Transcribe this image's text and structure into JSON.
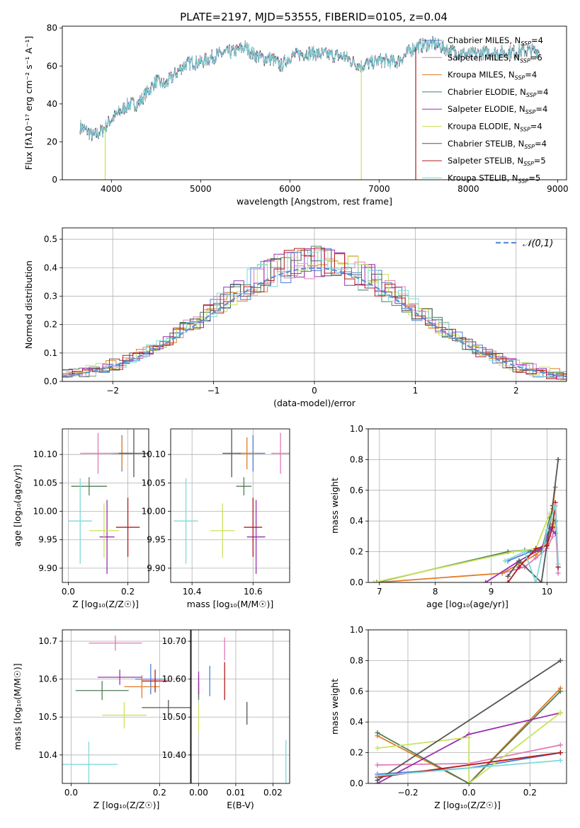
{
  "title": "PLATE=2197, MJD=53555, FIBERID=0105, z=0.04",
  "colors": {
    "Chabrier MILES": "#4a7fd6",
    "Salpeter MILES": "#e07ab8",
    "Kroupa MILES": "#e07c28",
    "Chabrier ELODIE": "#4e7d56",
    "Salpeter ELODIE": "#9a2fb0",
    "Kroupa ELODIE": "#c9e35a",
    "Chabrier STELIB": "#555555",
    "Salpeter STELIB": "#b51a1a",
    "Kroupa STELIB": "#7fd8d8"
  },
  "chart_data": [
    {
      "type": "line",
      "title": "PLATE=2197, MJD=53555, FIBERID=0105, z=0.04",
      "xlabel": "wavelength [Angstrom, rest frame]",
      "ylabel": "Flux [fλ10⁻¹⁷ erg cm⁻² s⁻¹ A⁻¹]",
      "xlim": [
        3450,
        9100
      ],
      "ylim": [
        0,
        81
      ],
      "xticks": [
        4000,
        5000,
        6000,
        7000,
        8000,
        9000
      ],
      "yticks": [
        0,
        20,
        40,
        60,
        80
      ],
      "legend_position": "right",
      "legend": [
        {
          "name": "Chabrier MILES",
          "nssp": "4"
        },
        {
          "name": "Salpeter MILES",
          "nssp": "6"
        },
        {
          "name": "Kroupa MILES",
          "nssp": "4"
        },
        {
          "name": "Chabrier ELODIE",
          "nssp": "4"
        },
        {
          "name": "Salpeter ELODIE",
          "nssp": "4"
        },
        {
          "name": "Kroupa ELODIE",
          "nssp": "4"
        },
        {
          "name": "Chabrier STELIB",
          "nssp": "4"
        },
        {
          "name": "Salpeter STELIB",
          "nssp": "5"
        },
        {
          "name": "Kroupa STELIB",
          "nssp": "5"
        }
      ],
      "nssp_prefix": "N",
      "nssp_sub": "SSP",
      "spectrum_anchors": {
        "x": [
          3650,
          3750,
          3800,
          3900,
          4000,
          4100,
          4200,
          4300,
          4400,
          4500,
          4600,
          4700,
          4800,
          4900,
          5000,
          5100,
          5200,
          5300,
          5400,
          5500,
          5600,
          5700,
          5800,
          5900,
          6000,
          6200,
          6400,
          6600,
          6800,
          7000,
          7200,
          7400,
          7600,
          7800,
          8000,
          8200,
          8400,
          8600,
          8800
        ],
        "y": [
          28,
          25,
          23,
          26,
          32,
          36,
          40,
          40,
          46,
          52,
          50,
          55,
          60,
          62,
          62,
          64,
          66,
          67,
          68,
          70,
          66,
          64,
          64,
          60,
          65,
          67,
          66,
          65,
          60,
          63,
          62,
          70,
          72,
          68,
          66,
          67,
          67,
          68,
          68
        ]
      },
      "dips": [
        {
          "x": 3930,
          "y": 0,
          "series": "Kroupa ELODIE"
        },
        {
          "x": 6800,
          "y": 0,
          "series": "Kroupa ELODIE"
        },
        {
          "x": 7410,
          "y": 0,
          "series": "Salpeter STELIB"
        }
      ]
    },
    {
      "type": "bar",
      "xlabel": "(data-model)/error",
      "ylabel": "Normed distribution",
      "xlim": [
        -2.5,
        2.5
      ],
      "ylim": [
        0,
        0.54
      ],
      "xticks": [
        -2,
        -1,
        0,
        1,
        2
      ],
      "yticks": [
        0.0,
        0.1,
        0.2,
        0.3,
        0.4,
        0.5
      ],
      "grid": true,
      "legend_position": "top-right",
      "legend_label": "𝒩(0,1)",
      "bin_width": 0.1,
      "gaussian": {
        "mean": 0,
        "sigma": 1
      }
    },
    {
      "type": "scatter",
      "xlabel": "Z [log₁₀(Z/Z☉)]",
      "ylabel": "age  [log₁₀(age/yr)]",
      "xlim": [
        -0.02,
        0.27
      ],
      "ylim": [
        9.875,
        10.145
      ],
      "xticks": [
        0.0,
        0.2
      ],
      "yticks": [
        9.9,
        9.95,
        10.0,
        10.05,
        10.1
      ],
      "grid": true,
      "points": [
        {
          "series": "Chabrier MILES",
          "x": 0.18,
          "y": 10.102,
          "dx": 0.035,
          "dy": 0.032
        },
        {
          "series": "Salpeter MILES",
          "x": 0.1,
          "y": 10.102,
          "dx": 0.06,
          "dy": 0.036
        },
        {
          "series": "Kroupa MILES",
          "x": 0.18,
          "y": 10.102,
          "dx": 0.02,
          "dy": 0.028
        },
        {
          "series": "Chabrier ELODIE",
          "x": 0.07,
          "y": 10.044,
          "dx": 0.06,
          "dy": 0.016
        },
        {
          "series": "Salpeter ELODIE",
          "x": 0.13,
          "y": 9.955,
          "dx": 0.025,
          "dy": 0.065
        },
        {
          "series": "Kroupa ELODIE",
          "x": 0.12,
          "y": 9.966,
          "dx": 0.05,
          "dy": 0.048
        },
        {
          "series": "Chabrier STELIB",
          "x": 0.22,
          "y": 10.102,
          "dx": 0.05,
          "dy": 0.042
        },
        {
          "series": "Salpeter STELIB",
          "x": 0.2,
          "y": 9.972,
          "dx": 0.04,
          "dy": 0.052
        },
        {
          "series": "Kroupa STELIB",
          "x": 0.04,
          "y": 9.983,
          "dx": 0.04,
          "dy": 0.075
        }
      ]
    },
    {
      "type": "scatter",
      "xlabel": "mass [log₁₀(M/M☉)]",
      "ylabel": "",
      "xlim": [
        10.33,
        10.72
      ],
      "ylim": [
        9.875,
        10.145
      ],
      "xticks": [
        10.4,
        10.6
      ],
      "yticks": [
        9.9,
        9.95,
        10.0,
        10.05,
        10.1
      ],
      "grid": true,
      "points": [
        {
          "series": "Chabrier MILES",
          "x": 10.6,
          "y": 10.102,
          "dx": 0.04,
          "dy": 0.032
        },
        {
          "series": "Salpeter MILES",
          "x": 10.69,
          "y": 10.102,
          "dx": 0.03,
          "dy": 0.036
        },
        {
          "series": "Kroupa MILES",
          "x": 10.58,
          "y": 10.102,
          "dx": 0.03,
          "dy": 0.028
        },
        {
          "series": "Chabrier ELODIE",
          "x": 10.57,
          "y": 10.044,
          "dx": 0.025,
          "dy": 0.016
        },
        {
          "series": "Salpeter ELODIE",
          "x": 10.61,
          "y": 9.955,
          "dx": 0.03,
          "dy": 0.065
        },
        {
          "series": "Kroupa ELODIE",
          "x": 10.5,
          "y": 9.966,
          "dx": 0.04,
          "dy": 0.048
        },
        {
          "series": "Chabrier STELIB",
          "x": 10.53,
          "y": 10.102,
          "dx": 0.03,
          "dy": 0.042
        },
        {
          "series": "Salpeter STELIB",
          "x": 10.6,
          "y": 9.972,
          "dx": 0.03,
          "dy": 0.052
        },
        {
          "series": "Kroupa STELIB",
          "x": 10.38,
          "y": 9.983,
          "dx": 0.04,
          "dy": 0.075
        }
      ]
    },
    {
      "type": "line",
      "xlabel": "age  [log₁₀(age/yr)]",
      "ylabel": "mass weight",
      "xlim": [
        6.8,
        10.35
      ],
      "ylim": [
        0,
        1.0
      ],
      "xticks": [
        7,
        8,
        9,
        10
      ],
      "yticks": [
        0.0,
        0.2,
        0.4,
        0.6,
        0.8,
        1.0
      ],
      "grid": true,
      "series": [
        {
          "name": "Chabrier MILES",
          "x": [
            9.3,
            9.7,
            9.9,
            10.0,
            10.1,
            10.15,
            10.2
          ],
          "y": [
            0.14,
            0.2,
            0.22,
            0.28,
            0.38,
            0.5,
            0.1
          ]
        },
        {
          "name": "Salpeter MILES",
          "x": [
            9.2,
            9.6,
            9.8,
            10.0,
            10.1,
            10.15,
            10.2
          ],
          "y": [
            0.06,
            0.1,
            0.16,
            0.22,
            0.3,
            0.4,
            0.06
          ]
        },
        {
          "name": "Kroupa MILES",
          "x": [
            6.95,
            9.2,
            9.8,
            10.0,
            10.1,
            10.15
          ],
          "y": [
            0.0,
            0.06,
            0.18,
            0.25,
            0.48,
            0.62
          ]
        },
        {
          "name": "Chabrier ELODIE",
          "x": [
            6.95,
            9.3,
            9.6,
            9.9,
            10.05,
            10.15
          ],
          "y": [
            0.0,
            0.2,
            0.21,
            0.2,
            0.42,
            0.4
          ]
        },
        {
          "name": "Salpeter ELODIE",
          "x": [
            8.9,
            9.5,
            9.9,
            10.05,
            10.15
          ],
          "y": [
            0.0,
            0.14,
            0.22,
            0.35,
            0.32
          ]
        },
        {
          "name": "Kroupa ELODIE",
          "x": [
            6.9,
            9.4,
            9.8,
            10.05,
            10.15
          ],
          "y": [
            0.0,
            0.2,
            0.22,
            0.45,
            0.36
          ]
        },
        {
          "name": "Chabrier STELIB",
          "x": [
            9.3,
            9.5,
            9.9,
            10.1,
            10.2
          ],
          "y": [
            0.04,
            0.14,
            0.0,
            0.5,
            0.8
          ]
        },
        {
          "name": "Salpeter STELIB",
          "x": [
            9.3,
            9.5,
            9.8,
            10.0,
            10.1,
            10.15,
            10.2
          ],
          "y": [
            0.0,
            0.1,
            0.22,
            0.24,
            0.36,
            0.52,
            0.1
          ]
        },
        {
          "name": "Kroupa STELIB",
          "x": [
            9.25,
            9.6,
            9.8,
            10.0,
            10.15,
            10.2
          ],
          "y": [
            0.14,
            0.2,
            0.0,
            0.34,
            0.5,
            0.12
          ]
        }
      ]
    },
    {
      "type": "scatter",
      "xlabel": "Z [log₁₀(Z/Z☉)]",
      "ylabel": "mass [log₁₀(M/M☉)]",
      "xlim": [
        -0.02,
        0.27
      ],
      "ylim": [
        10.325,
        10.73
      ],
      "xticks": [
        0.0,
        0.2
      ],
      "yticks": [
        10.4,
        10.5,
        10.6,
        10.7
      ],
      "grid": true,
      "points": [
        {
          "series": "Chabrier MILES",
          "x": 0.18,
          "y": 10.6,
          "dx": 0.035,
          "dy": 0.04
        },
        {
          "series": "Salpeter MILES",
          "x": 0.1,
          "y": 10.695,
          "dx": 0.06,
          "dy": 0.02
        },
        {
          "series": "Kroupa MILES",
          "x": 0.16,
          "y": 10.58,
          "dx": 0.04,
          "dy": 0.03
        },
        {
          "series": "Chabrier ELODIE",
          "x": 0.07,
          "y": 10.57,
          "dx": 0.06,
          "dy": 0.025
        },
        {
          "series": "Salpeter ELODIE",
          "x": 0.11,
          "y": 10.605,
          "dx": 0.05,
          "dy": 0.02
        },
        {
          "series": "Kroupa ELODIE",
          "x": 0.12,
          "y": 10.505,
          "dx": 0.05,
          "dy": 0.035
        },
        {
          "series": "Chabrier STELIB",
          "x": 0.22,
          "y": 10.525,
          "dx": 0.06,
          "dy": 0.02
        },
        {
          "series": "Salpeter STELIB",
          "x": 0.19,
          "y": 10.595,
          "dx": 0.03,
          "dy": 0.03
        },
        {
          "series": "Kroupa STELIB",
          "x": 0.04,
          "y": 10.375,
          "dx": 0.065,
          "dy": 0.06
        }
      ]
    },
    {
      "type": "scatter",
      "xlabel": "E(B-V)",
      "ylabel": "",
      "xlim": [
        -0.002,
        0.0245
      ],
      "ylim": [
        10.325,
        10.73
      ],
      "xticks": [
        0.0,
        0.01,
        0.02
      ],
      "yticks": [
        10.4,
        10.5,
        10.6,
        10.7
      ],
      "grid": true,
      "points": [
        {
          "series": "Chabrier MILES",
          "x": 0.003,
          "y": 10.595,
          "dx": 0.0,
          "dy": 0.04
        },
        {
          "series": "Salpeter MILES",
          "x": 0.007,
          "y": 10.68,
          "dx": 0.0,
          "dy": 0.03
        },
        {
          "series": "Kroupa MILES",
          "x": 0.0,
          "y": 10.58,
          "dx": 0.0,
          "dy": 0.03
        },
        {
          "series": "Chabrier ELODIE",
          "x": 0.0,
          "y": 10.57,
          "dx": 0.0,
          "dy": 0.025
        },
        {
          "series": "Salpeter ELODIE",
          "x": 0.0,
          "y": 10.59,
          "dx": 0.0,
          "dy": 0.03
        },
        {
          "series": "Kroupa ELODIE",
          "x": 0.0,
          "y": 10.495,
          "dx": 0.0,
          "dy": 0.035
        },
        {
          "series": "Chabrier STELIB",
          "x": 0.013,
          "y": 10.51,
          "dx": 0.0,
          "dy": 0.03
        },
        {
          "series": "Salpeter STELIB",
          "x": 0.007,
          "y": 10.595,
          "dx": 0.0,
          "dy": 0.05
        },
        {
          "series": "Kroupa STELIB",
          "x": 0.0235,
          "y": 10.37,
          "dx": 0.0,
          "dy": 0.07
        }
      ]
    },
    {
      "type": "line",
      "xlabel": "Z [log₁₀(Z/Z☉)]",
      "ylabel": "mass weight",
      "xlim": [
        -0.33,
        0.32
      ],
      "ylim": [
        0,
        1.0
      ],
      "xticks": [
        -0.2,
        0.0,
        0.2
      ],
      "yticks": [
        0.0,
        0.2,
        0.4,
        0.6,
        0.8,
        1.0
      ],
      "grid": true,
      "series": [
        {
          "name": "Chabrier MILES",
          "x": [
            -0.3,
            0.0,
            0.3
          ],
          "y": [
            0.06,
            0.1,
            0.2
          ]
        },
        {
          "name": "Salpeter MILES",
          "x": [
            -0.3,
            0.0,
            0.3
          ],
          "y": [
            0.12,
            0.13,
            0.25
          ]
        },
        {
          "name": "Kroupa MILES",
          "x": [
            -0.3,
            0.0,
            0.3
          ],
          "y": [
            0.31,
            0.0,
            0.62
          ]
        },
        {
          "name": "Chabrier ELODIE",
          "x": [
            -0.3,
            0.0,
            0.3
          ],
          "y": [
            0.33,
            0.0,
            0.6
          ]
        },
        {
          "name": "Salpeter ELODIE",
          "x": [
            -0.3,
            0.0,
            0.3
          ],
          "y": [
            0.0,
            0.32,
            0.46
          ]
        },
        {
          "name": "Kroupa ELODIE",
          "x": [
            -0.3,
            0.0,
            0.0,
            0.3
          ],
          "y": [
            0.23,
            0.3,
            0.0,
            0.46
          ]
        },
        {
          "name": "Chabrier STELIB",
          "x": [
            -0.3,
            0.3
          ],
          "y": [
            0.02,
            0.8
          ]
        },
        {
          "name": "Salpeter STELIB",
          "x": [
            -0.3,
            0.3
          ],
          "y": [
            0.04,
            0.2
          ]
        },
        {
          "name": "Kroupa STELIB",
          "x": [
            -0.3,
            0.3
          ],
          "y": [
            0.05,
            0.15
          ]
        }
      ]
    }
  ]
}
